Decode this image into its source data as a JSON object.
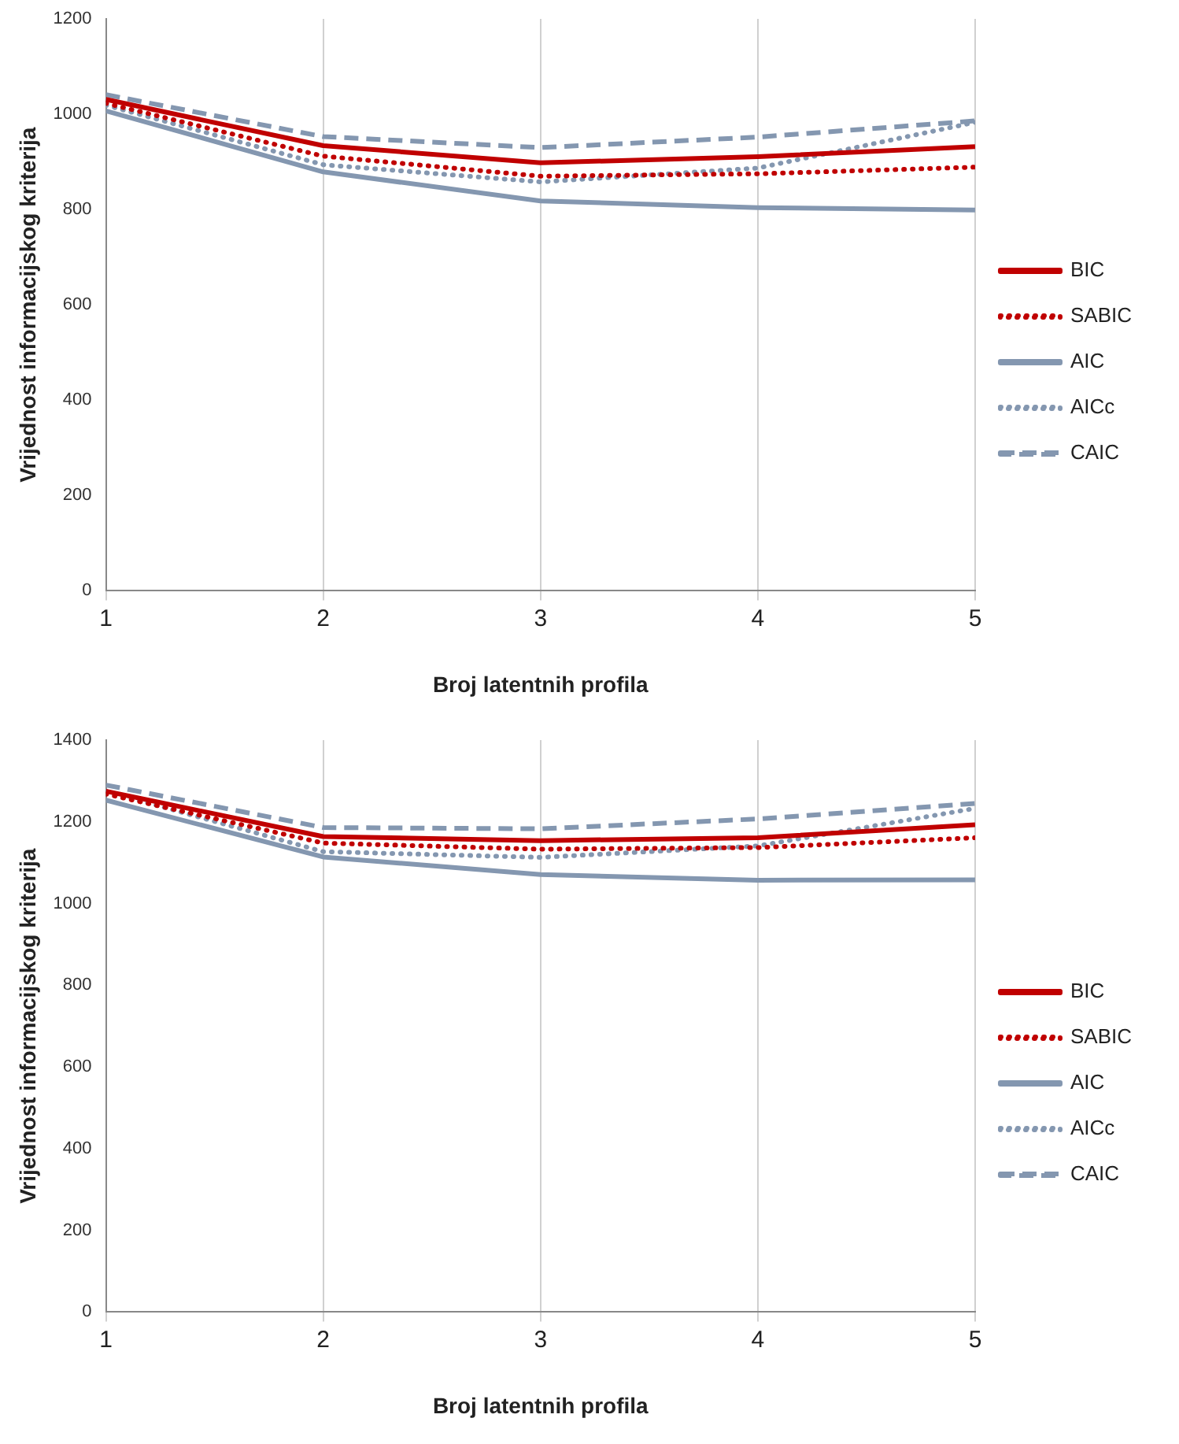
{
  "chart_data": [
    {
      "type": "line",
      "xlabel": "Broj latentnih profila",
      "ylabel": "Vrijednost informacijskog kriterija",
      "x": [
        1,
        2,
        3,
        4,
        5
      ],
      "xlim": [
        1,
        5
      ],
      "xticks": [
        1,
        2,
        3,
        4,
        5
      ],
      "ylim": [
        0,
        1200
      ],
      "yticks": [
        0,
        200,
        400,
        600,
        800,
        1000,
        1200
      ],
      "grid": "x",
      "legend": "right",
      "marker": "none",
      "series": [
        {
          "name": "BIC",
          "color": "#c00000",
          "line_style": "solid",
          "values": [
            1031,
            934,
            898,
            911,
            932
          ]
        },
        {
          "name": "SABIC",
          "color": "#c00000",
          "line_style": "dotted",
          "values": [
            1023,
            912,
            870,
            875,
            889
          ]
        },
        {
          "name": "AIC",
          "color": "#8497b0",
          "line_style": "solid",
          "values": [
            1007,
            879,
            818,
            804,
            799
          ]
        },
        {
          "name": "AICc",
          "color": "#8497b0",
          "line_style": "dotted",
          "values": [
            1019,
            894,
            858,
            887,
            983
          ]
        },
        {
          "name": "CAIC",
          "color": "#8497b0",
          "line_style": "dashed",
          "values": [
            1041,
            953,
            930,
            952,
            986
          ]
        }
      ]
    },
    {
      "type": "line",
      "xlabel": "Broj latentnih profila",
      "ylabel": "Vrijednost informacijskog kriterija",
      "x": [
        1,
        2,
        3,
        4,
        5
      ],
      "xlim": [
        1,
        5
      ],
      "xticks": [
        1,
        2,
        3,
        4,
        5
      ],
      "ylim": [
        0,
        1400
      ],
      "yticks": [
        0,
        200,
        400,
        600,
        800,
        1000,
        1200,
        1400
      ],
      "grid": "x",
      "legend": "right",
      "marker": "none",
      "series": [
        {
          "name": "BIC",
          "color": "#c00000",
          "line_style": "solid",
          "values": [
            1275,
            1164,
            1154,
            1161,
            1193
          ]
        },
        {
          "name": "SABIC",
          "color": "#c00000",
          "line_style": "dotted",
          "values": [
            1268,
            1148,
            1133,
            1137,
            1161
          ]
        },
        {
          "name": "AIC",
          "color": "#8497b0",
          "line_style": "solid",
          "values": [
            1253,
            1114,
            1071,
            1057,
            1058
          ]
        },
        {
          "name": "AICc",
          "color": "#8497b0",
          "line_style": "dotted",
          "values": [
            1275,
            1127,
            1113,
            1141,
            1233
          ]
        },
        {
          "name": "CAIC",
          "color": "#8497b0",
          "line_style": "dashed",
          "values": [
            1290,
            1186,
            1183,
            1207,
            1245
          ]
        }
      ]
    }
  ]
}
